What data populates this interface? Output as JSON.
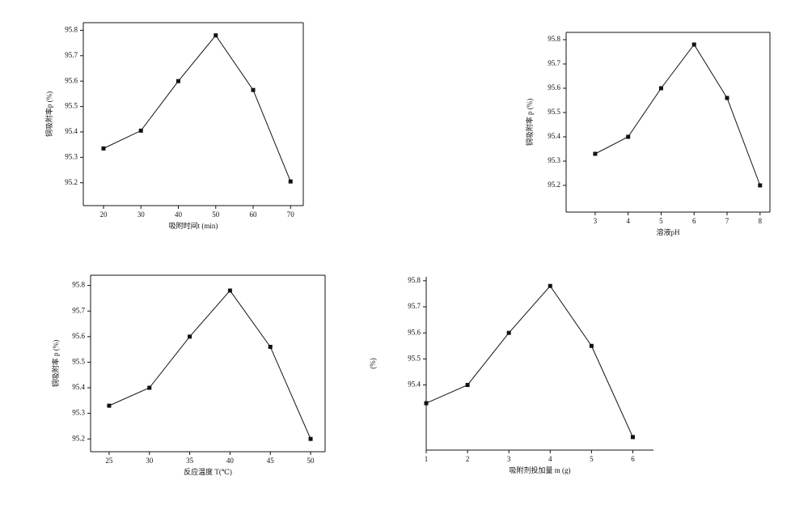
{
  "chart_data": [
    {
      "type": "line",
      "x_label": "吸附时间t (min)",
      "y_label": "铜吸附率p (%)",
      "x": [
        20,
        30,
        40,
        50,
        60,
        70
      ],
      "values": [
        95.335,
        95.405,
        95.6,
        95.78,
        95.565,
        95.205
      ],
      "color": "#111111",
      "xlim": [
        14.6,
        73.4
      ],
      "ylim": [
        95.11,
        95.83
      ],
      "xticks": [
        20,
        30,
        40,
        50,
        60,
        70
      ],
      "yticks": [
        95.2,
        95.3,
        95.4,
        95.5,
        95.6,
        95.7,
        95.8
      ]
    },
    {
      "type": "line",
      "x_label": "溶液pH",
      "y_label": "铜吸附率 p (%)",
      "x": [
        3,
        4,
        5,
        6,
        7,
        8
      ],
      "values": [
        95.33,
        95.4,
        95.6,
        95.78,
        95.56,
        95.2
      ],
      "color": "#111111",
      "xlim": [
        2.12,
        8.3
      ],
      "ylim": [
        95.09,
        95.83
      ],
      "xticks": [
        3,
        4,
        5,
        6,
        7,
        8
      ],
      "yticks": [
        95.2,
        95.3,
        95.4,
        95.5,
        95.6,
        95.7,
        95.8
      ]
    },
    {
      "type": "line",
      "x_label": "反应温度 T(℃)",
      "y_label": "铜吸附率 p (%)",
      "x": [
        25,
        30,
        35,
        40,
        45,
        50
      ],
      "values": [
        95.33,
        95.4,
        95.6,
        95.78,
        95.56,
        95.2
      ],
      "color": "#111111",
      "xlim": [
        22.7,
        51.8
      ],
      "ylim": [
        95.15,
        95.84
      ],
      "xticks": [
        25,
        30,
        35,
        40,
        45,
        50
      ],
      "yticks": [
        95.2,
        95.3,
        95.4,
        95.5,
        95.6,
        95.7,
        95.8
      ]
    },
    {
      "type": "line",
      "x_label": "吸附剂投加量 m (g)",
      "y_label": "(%)",
      "x": [
        1,
        2,
        3,
        4,
        5,
        6
      ],
      "values": [
        95.33,
        95.4,
        95.6,
        95.78,
        95.55,
        95.2
      ],
      "color": "#111111",
      "xlim": [
        1,
        6.5
      ],
      "ylim": [
        95.15,
        95.815
      ],
      "xticks": [
        1,
        2,
        3,
        4,
        5,
        6
      ],
      "yticks": [
        95.4,
        95.5,
        95.6,
        95.7,
        95.8
      ]
    }
  ]
}
